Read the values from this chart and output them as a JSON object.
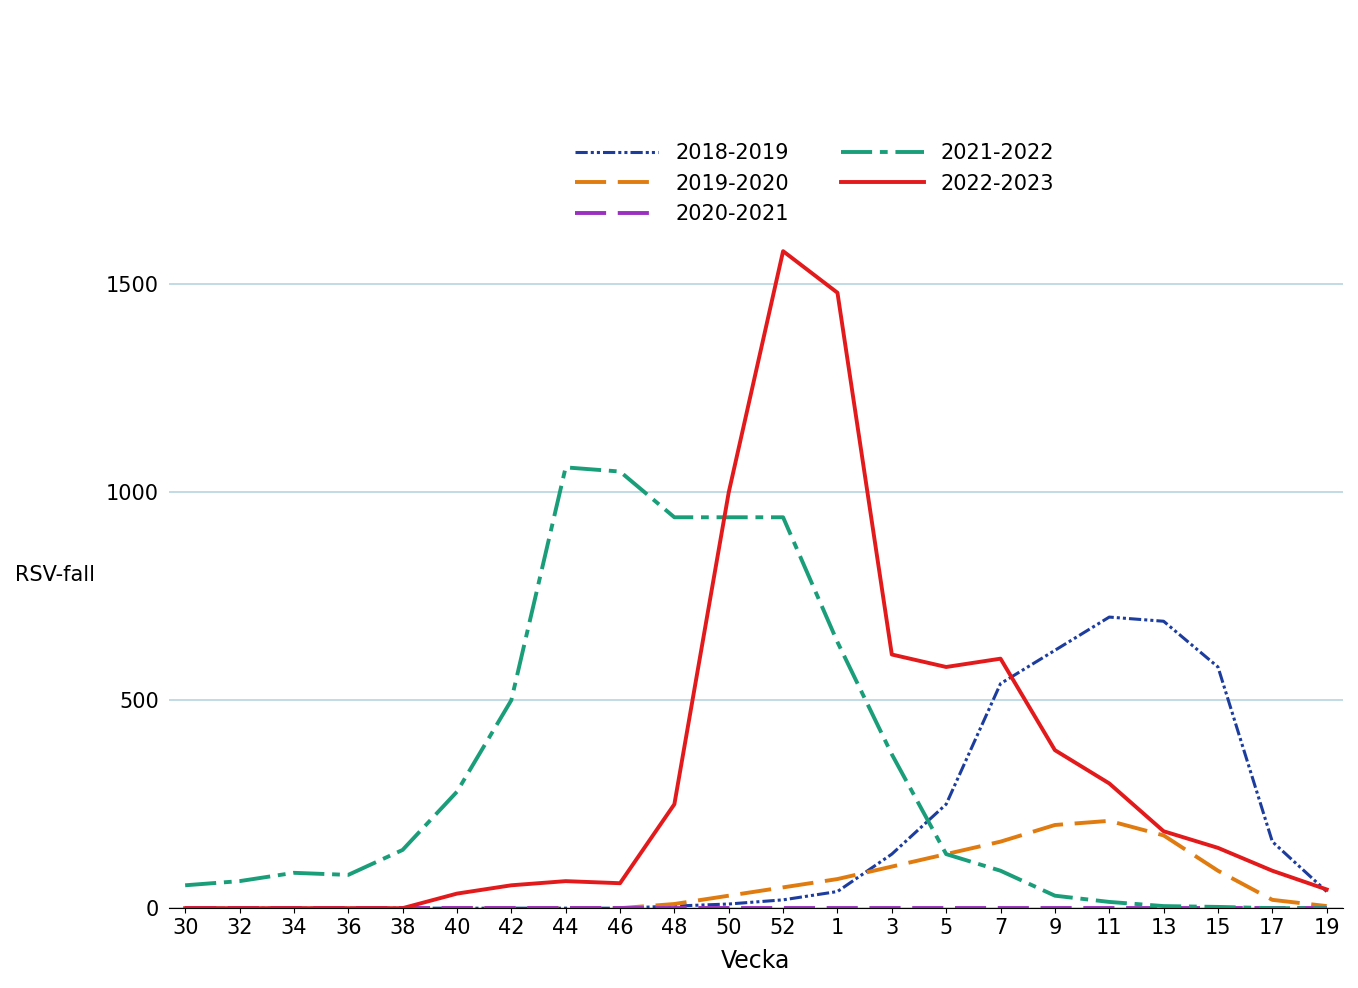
{
  "xlabel": "Vecka",
  "ylabel": "RSV-fall",
  "xlim_labels": [
    "30",
    "32",
    "34",
    "36",
    "38",
    "40",
    "42",
    "44",
    "46",
    "48",
    "50",
    "52",
    "1",
    "3",
    "5",
    "7",
    "9",
    "11",
    "13",
    "15",
    "17",
    "19"
  ],
  "ylim": [
    0,
    1650
  ],
  "yticks": [
    0,
    500,
    1000,
    1500
  ],
  "background_color": "#ffffff",
  "grid_color": "#b8d4e0",
  "series_data": {
    "2018-2019": [
      0,
      0,
      0,
      0,
      0,
      0,
      0,
      0,
      0,
      5,
      10,
      20,
      40,
      130,
      250,
      540,
      620,
      700,
      690,
      580,
      160,
      40
    ],
    "2019-2020": [
      0,
      0,
      0,
      0,
      0,
      0,
      0,
      0,
      0,
      10,
      30,
      50,
      70,
      100,
      130,
      160,
      200,
      210,
      175,
      90,
      20,
      5
    ],
    "2020-2021": [
      0,
      0,
      0,
      0,
      0,
      0,
      0,
      0,
      0,
      0,
      0,
      0,
      0,
      0,
      0,
      0,
      0,
      0,
      0,
      0,
      0,
      0
    ],
    "2021-2022": [
      55,
      65,
      85,
      80,
      140,
      280,
      500,
      1060,
      1050,
      940,
      940,
      940,
      640,
      370,
      130,
      90,
      30,
      15,
      5,
      3,
      0,
      0
    ],
    "2022-2023": [
      0,
      0,
      0,
      0,
      0,
      35,
      55,
      65,
      60,
      250,
      1000,
      1580,
      1480,
      610,
      580,
      600,
      380,
      300,
      185,
      145,
      90,
      45
    ]
  },
  "series_styles": {
    "2018-2019": {
      "color": "#1c3d9e",
      "linestyle": "dashdotdot",
      "linewidth": 2.2
    },
    "2019-2020": {
      "color": "#e07b10",
      "linestyle": "dashed",
      "linewidth": 2.8
    },
    "2020-2021": {
      "color": "#9b30c0",
      "linestyle": "dashed",
      "linewidth": 2.8
    },
    "2021-2022": {
      "color": "#1a9e7a",
      "linestyle": "dashdot",
      "linewidth": 2.8
    },
    "2022-2023": {
      "color": "#e31a1c",
      "linestyle": "solid",
      "linewidth": 2.8
    }
  },
  "legend_rows": [
    [
      "2018-2019",
      "2019-2020"
    ],
    [
      "2020-2021",
      "2021-2022"
    ],
    [
      "2022-2023"
    ]
  ]
}
